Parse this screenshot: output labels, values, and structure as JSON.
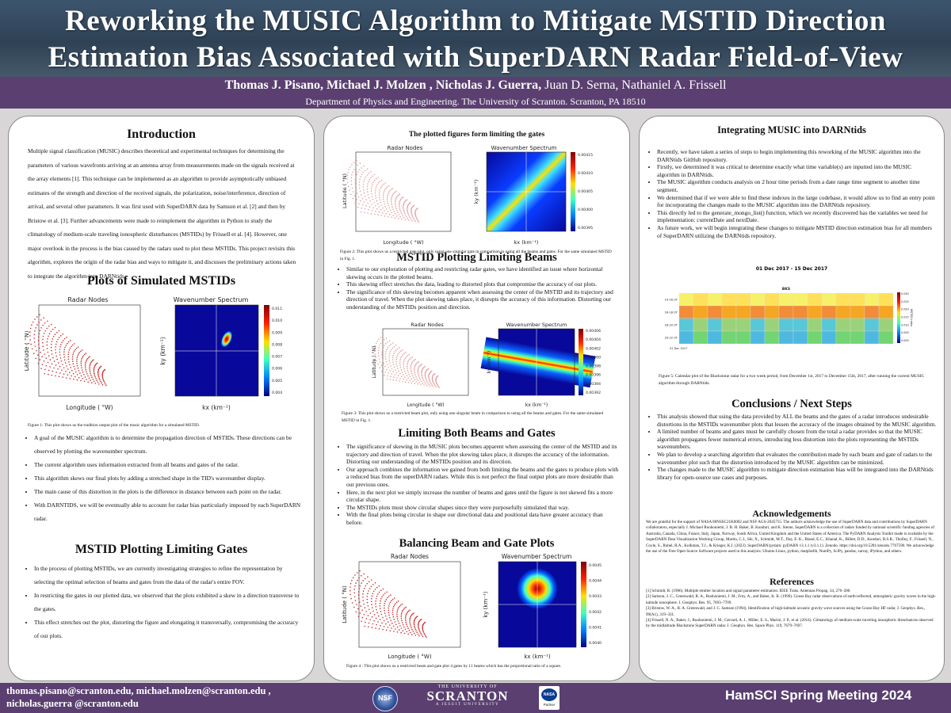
{
  "title_line1": "Reworking the MUSIC Algorithm to Mitigate MSTID Direction",
  "title_line2": "Estimation Bias Associated with SuperDARN Radar Field-of-View",
  "authors_bold": "Thomas J. Pisano,  Michael J. Molzen , Nicholas J. Guerra,",
  "authors_plain": " Juan D. Serna, Nathaniel A. Frissell",
  "affiliation": "Department of Physics and Engineering. The University of Scranton. Scranton, PA 18510",
  "intro": {
    "heading": "Introduction",
    "text": "Multiple signal classification (MUSIC) describes theoretical and experimental techniques for determining the parameters of various wavefronts arriving at an antenna array from measurements made on the signals received at the array elements [1]. This technique can be implemented as an algorithm to provide asymptotically unbiased estimates of the strength and direction of the received signals, the polarization, noise/interference, direction of arrival, and several other parameters. It was first used with SuperDARN data by Samson et al. [2] and then by Bristow et al. [3]. Further advancements were made to reimplement the algorithm in Python to study the climatology of medium-scale traveling ionospheric disturbances (MSTIDs) by Frissell et al. [4]. However, one major overlook in the process is the bias caused by the radars used to plot these MSTIDs. This project revisits this algorithm, explores the origin of the radar bias and ways to mitigate it, and discusses the preliminary actions taken to integrate the algorithm into DARNtids."
  },
  "simulated": {
    "heading": "Plots of Simulated MSTIDs",
    "caption": "Figure 1: This plot shows us the tradition output plot of the music algorithm for a simulated MSTID.",
    "bullets": [
      "A goal of the MUSIC algorithm is to determine the propagation direction of MSTIDs. These directions can be observed by plotting the wavenumber spectrum.",
      "The current algorithm uses information extracted from all beams and gates of the radar.",
      "This algorithm skews our final plots by adding a stretched shape in the TID's wavenumber display.",
      "The main cause of this distortion in the plots is the difference in distance between each point on the radar.",
      "With DARNTIDS, we will be eventually able to account for radar bias particularly imposed by each SuperDARN radar."
    ]
  },
  "gates": {
    "heading": "MSTID Plotting Limiting Gates",
    "bullets": [
      "In the process of plotting MSTIDs, we are currently investigating strategies to refine the representation by selecting the optimal selection of beams and gates from the data of the radar's entire FOV.",
      "In restricting the gates in our plotted data, we observed that the plots exhibited a skew in a direction transverse to the gates.",
      "This effect stretches out the plot, distorting the figure and elongating it transversally, compromising the accuracy of our plots."
    ]
  },
  "plotted_gates": {
    "heading": "The plotted figures form limiting the gates",
    "caption": "Figure 2: This plot shows us a restricted gate plot, only using one singular gate in comparison to using all the beams and gates. For the same simulated MSTID in Fig. 1."
  },
  "beams": {
    "heading": "MSTID Plotting Limiting Beams",
    "bullets": [
      "Similar to our exploration of plotting and restricting radar gates, we have identified an issue where horizontal skewing occurs in the plotted beams.",
      "This skewing effect stretches the data, leading to distorted plots that compromise the accuracy of our plots.",
      "The significance of this skewing becomes apparent when assessing the center of the MSTID and its trajectory and direction of travel. When the plot skewing takes place, it disrupts the accuracy of this information. Distorting our understanding of the MSTIDs position and direction."
    ],
    "caption": "Figure 3: This plot shows us a restricted beam plot, only using one singular beam in comparison to using all the beams and gates. For the same simulated MSTID in Fig. 1."
  },
  "both": {
    "heading": "Limiting Both Beams and Gates",
    "bullets": [
      "The significance of  skewing in the MUSIC plots becomes apparent when assessing the center of the MSTID and its trajectory and direction of travel. When the plot skewing takes place, it disrupts the accuracy of the information. Distorting our understanding of the MSTIDs position and its direction.",
      "Our approach combines the information we gained from both limiting the beams and the gates to produce plots with a reduced bias from the superDARN radars. While this is not perfect the final output plots are more desirable than our previous ones.",
      "Here, in the next plot we simply increase the number of beams and gates until the figure is not skewed fits a more circular shape.",
      "The MSTIDs plots must show circular shapes since they were purposefully simulated that way.",
      "With the final plots being circular in shape our directional data and positional data have greater accuracy than before."
    ]
  },
  "balancing": {
    "heading": "Balancing Beam and Gate Plots",
    "caption": "Figure 4 : This plot shows us a restricted  beam and gate plot 4 gates by 11 beams which has the proportional ratio of a square."
  },
  "integrating": {
    "heading": "Integrating MUSIC into DARNtids",
    "bullets": [
      "Recently, we have taken a series of steps to begin implementing this reworking of the MUSIC algorithm into the DARNtids GitHub repository.",
      "Firstly, we determined it was critical to determine exactly what time variable(s) are inputted into the MUSIC algorithm in DARNtids.",
      "The MUSIC algorithm conducts analysis on 2 hour time periods from a date range time segment to another time segment.",
      "We determined that if we were able to find these indexes in the large codebase, it would allow us to find an entry point for incorporating the changes made to the MUSIC algorithm into the DARNtids repository.",
      "This directly led to the generate_mongo_list() function, which we recently discovered has the variables we need for implementation: currentDate and nextDate.",
      "As future work, we will begin integrating these changes to mitigate MSTID direction estimation bias for all members of SuperDARN utilizing the DARNtids repository."
    ],
    "calendar_title": "01 Dec 2017 - 15 Dec 2017",
    "calendar_radar": "BKS",
    "calendar_rows": [
      "14-16 UT",
      "16-18 UT",
      "18-20 UT",
      "20-22 UT"
    ],
    "calendar_date": "01 Dec 2017",
    "calendar_colorbar_label": "MSTID Index",
    "calendar_ticks": [
      "0.030",
      "0.025",
      "0.020",
      "0.015",
      "0.010",
      "0.005",
      "0.000"
    ],
    "caption": "Figure 5: Calendar plot of the Blackstone radar for a two week period, from December 1st, 2017 to December 15th, 2017,  after running the current MUSIC algorithm through DARNtids."
  },
  "conclusions": {
    "heading": "Conclusions / Next Steps",
    "bullets": [
      "This analysis showed that using the data provided by ALL the beams and the gates of a radar introduces undesirable distortions in the MSTIDs wavenumber plots that lessen the accuracy of the images obtained by the MUSIC algorithm.",
      "A limited number of beams and gates must be carefully chosen from the total a radar provides so that the MUSIC algorithm propagates fewer numerical errors, introducing less distortion into the plots representing the MSTIDs wavenumbers.",
      "We plan to develop a searching algorithm that evaluates the contribution made by each beam and gate of radars to the wavenumber plot such that the distortion introduced by the MUSIC algorithm can be minimized.",
      "The changes made to the MUSIC algorithm to mitigate direction estimation bias will be integrated into the DARNtids library for open-source use cases and purposes."
    ]
  },
  "acknowledgements": {
    "heading": "Acknowledgements",
    "text": "We are grateful for the support of NASA 80NSSC21K0002 and NSF AGS-2045755. The authors acknowledge the use of SuperDARN data and contributions by SuperDARN collaborators, especially J. Michael Ruohoniemi, J. B. H. Baker, B. Kunduri, and K. Sterne, SuperDARN is a collection of radars funded by national scientific funding agencies of Australia, Canada, China, France, Italy, Japan, Norway, South Africa, United Kingdom and the United States of America. The PyDARN Analysis Toolkit made is available by the SuperDARN Data Visualization Working Group, Martin, C.J., Shi, X., Schmidt, M.T., Day, E. K., Bland, E.C., Khanal, K., Billett, D.D., Kunduri, B.S.R., Tholley, F., Frissell, N., Coyle, S., Rohel, R.A., Kolkman, T.J., & Krieger, K.J. (2023). SuperDARN/pydarn: pyDARN v3.1.1 (v3.1.1). Zenodo. https://doi.org/10.5281/zenodo.7767590. We acknowledge the use of the Free Open Source Software projects used in this analysis: Ubuntu Linux, python, matplotlib, NumPy, SciPy, pandas, xarray, iPython, and others."
  },
  "references": {
    "heading": "References",
    "items": [
      "[1] Schmidt, R. (1986). Multiple emitter location and signal parameter estimation. IEEE Trans. Antennas Propag. 34, 276–280.",
      "[2] Samson, J. C., Greenwald, R. A., Ruohoniemi, J. M., Frey, A., and Baker, K. B. (1990). Goose Bay radar observations of earth-reflected, atmospheric gravity waves in the high-latitude ionosphere. J. Geophys. Res. 95, 7693–7709.",
      "[3] Bristow, W. A., R. A. Greenwald, and J. C. Samson (1994), Identification of high-latitude acoustic gravity wave sources using the Goose Bay HF radar, J. Geophys. Res., 99(A1), 319–331.",
      "[4] Frissell, N. A., Baker, J., Ruohoniemi, J. M., Gerrard, A. J., Miller, E. S., Marini, J. P., et al. (2014). Climatology of medium-scale traveling ionospheric disturbances observed by the midlatitude Blackstone SuperDARN radar. J. Geophys. Res. Space Phys. 119, 7679–7697."
    ]
  },
  "plot_labels": {
    "radar_title": "Radar Nodes",
    "spectrum_title": "Wavenumber Spectrum",
    "lon_label": "Longitude ( °W)",
    "lat_label": "Latitude ( °N)",
    "kx_label": "kx (km⁻¹)",
    "ky_label": "ky (km⁻¹)"
  },
  "fig1_ticks": [
    "0.011",
    "0.010",
    "0.009",
    "0.008",
    "0.007",
    "0.006",
    "0.005",
    "0.004"
  ],
  "fig2_ticks": [
    "0.00415",
    "0.00410",
    "0.00405",
    "0.00400",
    "0.00395"
  ],
  "fig3_ticks": [
    "0.00406",
    "0.00404",
    "0.00402",
    "0.00400",
    "0.00398",
    "0.00396",
    "0.00394",
    "0.00392"
  ],
  "fig4_ticks": [
    "0.0045",
    "0.0044",
    "0.0043",
    "0.0042",
    "0.0041",
    "0.0040"
  ],
  "footer": {
    "email_line1": "thomas.pisano@scranton.edu,  michael.molzen@scranton.edu ,",
    "email_line2": "nicholas.guerra @scranton.edu",
    "meeting": "HamSCI Spring Meeting 2024",
    "nsf": "NSF",
    "univ_small": "THE UNIVERSITY OF",
    "univ_big": "SCRANTON",
    "univ_sub": "A JESUIT UNIVERSITY",
    "nasa": "NASA",
    "partner": "Partner"
  },
  "colors": {
    "header": "#34495e",
    "purple": "#5a3f70",
    "accent": "#ffffff"
  }
}
